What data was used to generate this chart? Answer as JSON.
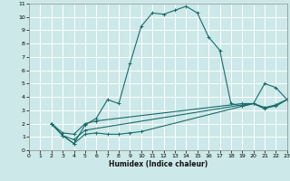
{
  "xlabel": "Humidex (Indice chaleur)",
  "bg_color": "#cce8e8",
  "grid_color": "#ffffff",
  "line_color": "#1a6b6b",
  "xlim": [
    0,
    23
  ],
  "ylim": [
    0,
    11
  ],
  "xticks": [
    0,
    1,
    2,
    3,
    4,
    5,
    6,
    7,
    8,
    9,
    10,
    11,
    12,
    13,
    14,
    15,
    16,
    17,
    18,
    19,
    20,
    21,
    22,
    23
  ],
  "yticks": [
    0,
    1,
    2,
    3,
    4,
    5,
    6,
    7,
    8,
    9,
    10,
    11
  ],
  "lines": [
    {
      "x": [
        2,
        3,
        4,
        5,
        6,
        7,
        8,
        9,
        10,
        11,
        12,
        13,
        14,
        15,
        16,
        17,
        18,
        19,
        20,
        21,
        22,
        23
      ],
      "y": [
        2.0,
        1.1,
        0.5,
        1.9,
        2.4,
        3.8,
        3.5,
        6.5,
        9.3,
        10.3,
        10.2,
        10.5,
        10.8,
        10.3,
        8.5,
        7.5,
        3.5,
        3.3,
        3.5,
        5.0,
        4.7,
        3.8
      ]
    },
    {
      "x": [
        2,
        3,
        4,
        5,
        6,
        7,
        8,
        9,
        10,
        19,
        20,
        21,
        22,
        23
      ],
      "y": [
        2.0,
        1.1,
        0.5,
        1.2,
        1.3,
        1.2,
        1.2,
        1.3,
        1.4,
        3.3,
        3.5,
        3.1,
        3.4,
        3.8
      ]
    },
    {
      "x": [
        2,
        3,
        4,
        5,
        6,
        19,
        20,
        21,
        22,
        23
      ],
      "y": [
        2.0,
        1.3,
        1.2,
        2.0,
        2.2,
        3.5,
        3.5,
        3.2,
        3.4,
        3.8
      ]
    },
    {
      "x": [
        2,
        3,
        4,
        5,
        19,
        20,
        21,
        22,
        23
      ],
      "y": [
        2.0,
        1.1,
        0.8,
        1.5,
        3.4,
        3.5,
        3.2,
        3.3,
        3.8
      ]
    }
  ]
}
